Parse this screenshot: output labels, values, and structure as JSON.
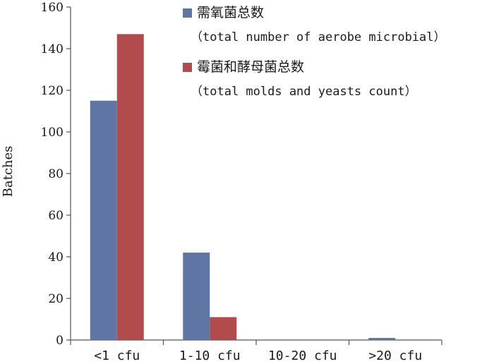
{
  "chart_data": {
    "type": "bar",
    "categories": [
      "<1 cfu",
      "1-10 cfu",
      "10-20 cfu",
      ">20 cfu"
    ],
    "series": [
      {
        "name": "需氧菌总数",
        "name_sub": "（total number of aerobe microbial）",
        "color": "#5f75a3",
        "values": [
          115,
          42,
          0,
          1
        ]
      },
      {
        "name": "霉菌和酵母菌总数",
        "name_sub": "（total molds and yeasts count）",
        "color": "#b24b4b",
        "values": [
          147,
          11,
          0,
          0
        ]
      }
    ],
    "ylabel": "Batches",
    "ylim": [
      0,
      160
    ],
    "yticks": [
      0,
      20,
      40,
      60,
      80,
      100,
      120,
      140,
      160
    ],
    "grid": false,
    "legend": "top-right"
  }
}
